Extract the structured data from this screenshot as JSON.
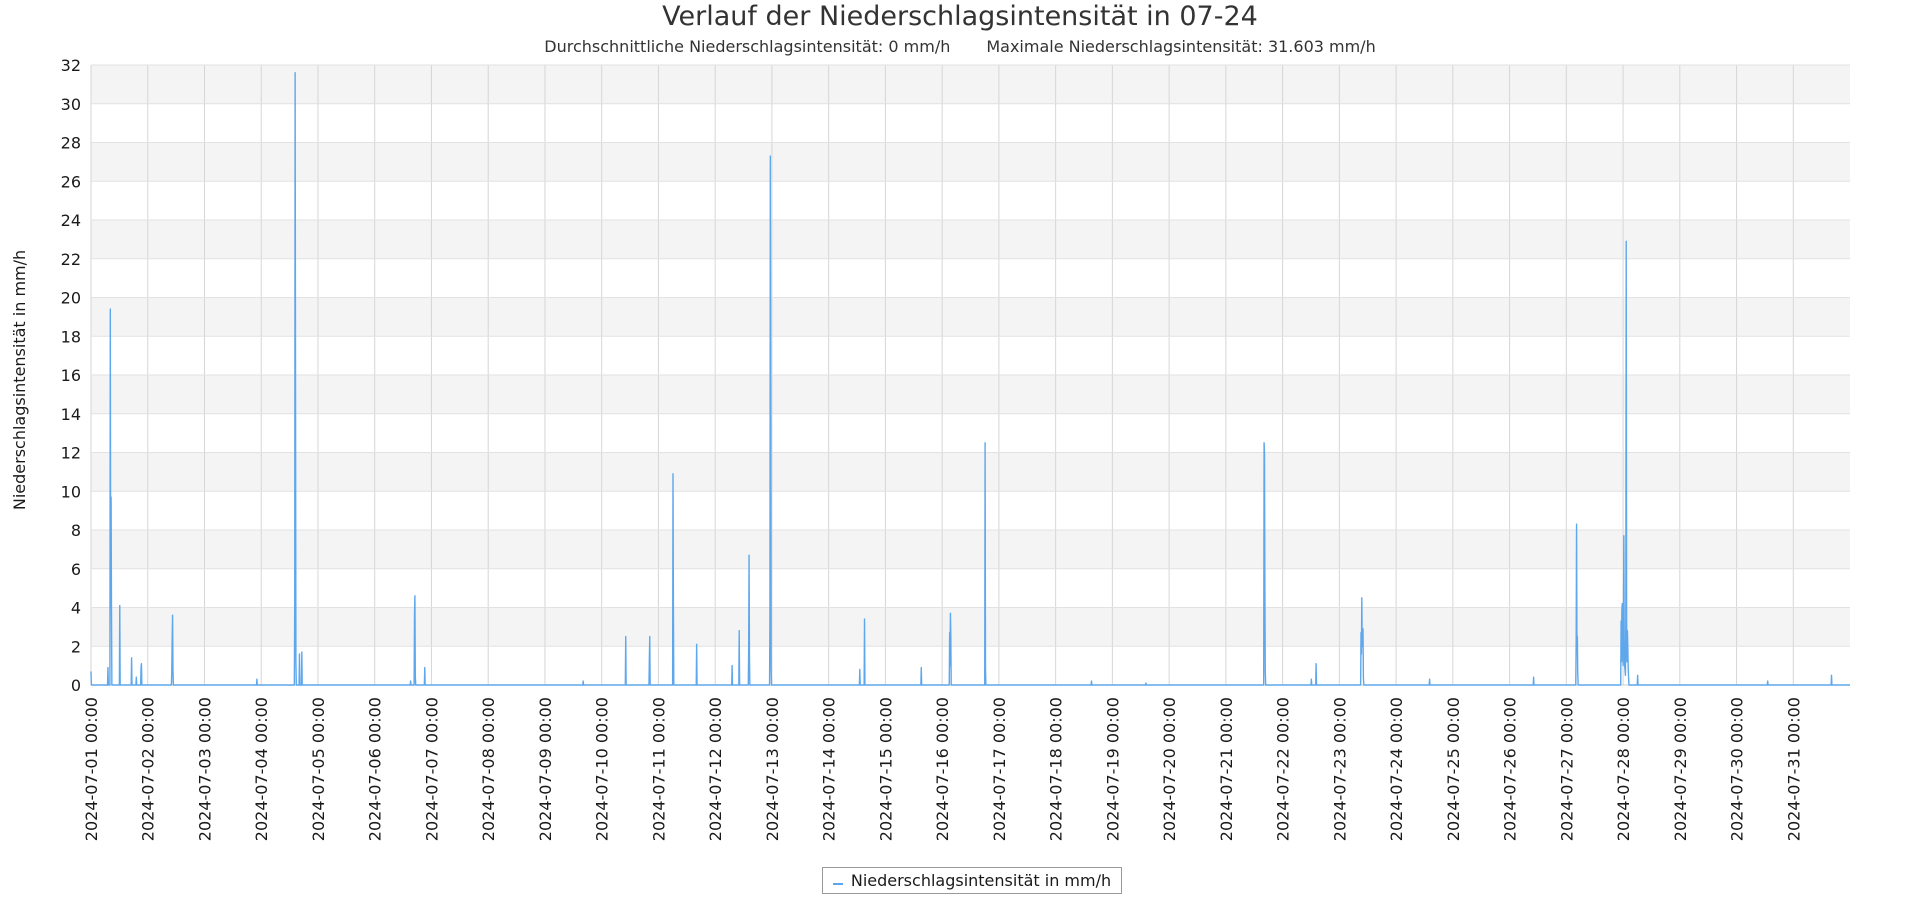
{
  "chart_data": {
    "type": "line",
    "title": "Verlauf der Niederschlagsintensität in 07-24",
    "subtitle": [
      "Durchschnittliche Niederschlagsintensität: 0 mm/h",
      "Maximale Niederschlagsintensität: 31.603 mm/h"
    ],
    "xlabel": "",
    "ylabel": "Niederschlagsintensität in mm/h",
    "xlim": [
      "2024-07-01 00:00",
      "2024-07-31 23:59"
    ],
    "ylim": [
      0,
      32
    ],
    "yticks": [
      0,
      2,
      4,
      6,
      8,
      10,
      12,
      14,
      16,
      18,
      20,
      22,
      24,
      26,
      28,
      30,
      32
    ],
    "xticks": [
      "2024-07-01 00:00",
      "2024-07-02 00:00",
      "2024-07-03 00:00",
      "2024-07-04 00:00",
      "2024-07-05 00:00",
      "2024-07-06 00:00",
      "2024-07-07 00:00",
      "2024-07-08 00:00",
      "2024-07-09 00:00",
      "2024-07-10 00:00",
      "2024-07-11 00:00",
      "2024-07-12 00:00",
      "2024-07-13 00:00",
      "2024-07-14 00:00",
      "2024-07-15 00:00",
      "2024-07-16 00:00",
      "2024-07-17 00:00",
      "2024-07-18 00:00",
      "2024-07-19 00:00",
      "2024-07-20 00:00",
      "2024-07-21 00:00",
      "2024-07-22 00:00",
      "2024-07-23 00:00",
      "2024-07-24 00:00",
      "2024-07-25 00:00",
      "2024-07-26 00:00",
      "2024-07-27 00:00",
      "2024-07-28 00:00",
      "2024-07-29 00:00",
      "2024-07-30 00:00",
      "2024-07-31 00:00"
    ],
    "grid": true,
    "legend_position": "bottom-center",
    "series": [
      {
        "name": "Niederschlagsintensität in mm/h",
        "color": "#5ea7ec",
        "points": [
          [
            "2024-07-01 00:00",
            0.7
          ],
          [
            "2024-07-01 00:10",
            0
          ],
          [
            "2024-07-01 07:00",
            0
          ],
          [
            "2024-07-01 07:10",
            0.9
          ],
          [
            "2024-07-01 07:20",
            0
          ],
          [
            "2024-07-01 08:00",
            0
          ],
          [
            "2024-07-01 08:10",
            19.4
          ],
          [
            "2024-07-01 08:20",
            4
          ],
          [
            "2024-07-01 08:30",
            9.7
          ],
          [
            "2024-07-01 08:40",
            3.9
          ],
          [
            "2024-07-01 08:50",
            0
          ],
          [
            "2024-07-01 12:00",
            0
          ],
          [
            "2024-07-01 12:10",
            4.1
          ],
          [
            "2024-07-01 12:20",
            0
          ],
          [
            "2024-07-01 17:00",
            0
          ],
          [
            "2024-07-01 17:10",
            1.4
          ],
          [
            "2024-07-01 17:20",
            0
          ],
          [
            "2024-07-01 19:00",
            0
          ],
          [
            "2024-07-01 19:10",
            0.4
          ],
          [
            "2024-07-01 19:20",
            0
          ],
          [
            "2024-07-01 21:00",
            0
          ],
          [
            "2024-07-01 21:10",
            0.9
          ],
          [
            "2024-07-01 21:20",
            1.1
          ],
          [
            "2024-07-01 21:30",
            0
          ],
          [
            "2024-07-02 10:00",
            0
          ],
          [
            "2024-07-02 10:10",
            0.7
          ],
          [
            "2024-07-02 10:20",
            2.4
          ],
          [
            "2024-07-02 10:30",
            3.6
          ],
          [
            "2024-07-02 10:40",
            0.8
          ],
          [
            "2024-07-02 10:50",
            0
          ],
          [
            "2024-07-03 22:00",
            0
          ],
          [
            "2024-07-03 22:10",
            0.3
          ],
          [
            "2024-07-03 22:20",
            0
          ],
          [
            "2024-07-04 14:00",
            0
          ],
          [
            "2024-07-04 14:10",
            4
          ],
          [
            "2024-07-04 14:20",
            31.603
          ],
          [
            "2024-07-04 14:30",
            16
          ],
          [
            "2024-07-04 14:40",
            1.2
          ],
          [
            "2024-07-04 14:50",
            0
          ],
          [
            "2024-07-04 16:00",
            0
          ],
          [
            "2024-07-04 16:10",
            1.6
          ],
          [
            "2024-07-04 16:20",
            0
          ],
          [
            "2024-07-04 17:00",
            0
          ],
          [
            "2024-07-04 17:10",
            1.7
          ],
          [
            "2024-07-04 17:20",
            0
          ],
          [
            "2024-07-06 15:00",
            0
          ],
          [
            "2024-07-06 15:10",
            0.2
          ],
          [
            "2024-07-06 15:20",
            0
          ],
          [
            "2024-07-06 16:40",
            0
          ],
          [
            "2024-07-06 16:50",
            3.7
          ],
          [
            "2024-07-06 17:00",
            4.6
          ],
          [
            "2024-07-06 17:10",
            0.5
          ],
          [
            "2024-07-06 17:20",
            0
          ],
          [
            "2024-07-06 21:00",
            0
          ],
          [
            "2024-07-06 21:10",
            0.9
          ],
          [
            "2024-07-06 21:20",
            0
          ],
          [
            "2024-07-09 16:00",
            0
          ],
          [
            "2024-07-09 16:10",
            0.2
          ],
          [
            "2024-07-09 16:20",
            0
          ],
          [
            "2024-07-10 10:00",
            0
          ],
          [
            "2024-07-10 10:10",
            2.5
          ],
          [
            "2024-07-10 10:20",
            0
          ],
          [
            "2024-07-10 20:00",
            0
          ],
          [
            "2024-07-10 20:10",
            1.4
          ],
          [
            "2024-07-10 20:20",
            2.5
          ],
          [
            "2024-07-10 20:30",
            0
          ],
          [
            "2024-07-11 06:00",
            0
          ],
          [
            "2024-07-11 06:10",
            10.9
          ],
          [
            "2024-07-11 06:20",
            4
          ],
          [
            "2024-07-11 06:30",
            0
          ],
          [
            "2024-07-11 16:00",
            0
          ],
          [
            "2024-07-11 16:10",
            2.1
          ],
          [
            "2024-07-11 16:20",
            0
          ],
          [
            "2024-07-12 07:00",
            0
          ],
          [
            "2024-07-12 07:10",
            1
          ],
          [
            "2024-07-12 07:20",
            0
          ],
          [
            "2024-07-12 10:00",
            0
          ],
          [
            "2024-07-12 10:10",
            2.8
          ],
          [
            "2024-07-12 10:20",
            0
          ],
          [
            "2024-07-12 14:00",
            0
          ],
          [
            "2024-07-12 14:10",
            1.8
          ],
          [
            "2024-07-12 14:20",
            6.7
          ],
          [
            "2024-07-12 14:30",
            1.4
          ],
          [
            "2024-07-12 14:40",
            0
          ],
          [
            "2024-07-12 23:00",
            0
          ],
          [
            "2024-07-12 23:10",
            3.5
          ],
          [
            "2024-07-12 23:20",
            27.3
          ],
          [
            "2024-07-12 23:30",
            15
          ],
          [
            "2024-07-12 23:40",
            0.8
          ],
          [
            "2024-07-12 23:50",
            0
          ],
          [
            "2024-07-14 13:00",
            0
          ],
          [
            "2024-07-14 13:10",
            0.8
          ],
          [
            "2024-07-14 13:20",
            0
          ],
          [
            "2024-07-14 15:00",
            0
          ],
          [
            "2024-07-14 15:10",
            3.4
          ],
          [
            "2024-07-14 15:20",
            0
          ],
          [
            "2024-07-15 15:00",
            0
          ],
          [
            "2024-07-15 15:10",
            0.9
          ],
          [
            "2024-07-15 15:20",
            0
          ],
          [
            "2024-07-16 03:00",
            0
          ],
          [
            "2024-07-16 03:10",
            2.7
          ],
          [
            "2024-07-16 03:20",
            1
          ],
          [
            "2024-07-16 03:30",
            3.7
          ],
          [
            "2024-07-16 03:40",
            2.5
          ],
          [
            "2024-07-16 03:50",
            0
          ],
          [
            "2024-07-16 18:00",
            0
          ],
          [
            "2024-07-16 18:10",
            12.5
          ],
          [
            "2024-07-16 18:20",
            0.8
          ],
          [
            "2024-07-16 18:30",
            0
          ],
          [
            "2024-07-18 15:00",
            0
          ],
          [
            "2024-07-18 15:10",
            0.2
          ],
          [
            "2024-07-18 15:20",
            0
          ],
          [
            "2024-07-19 14:00",
            0
          ],
          [
            "2024-07-19 14:10",
            0.1
          ],
          [
            "2024-07-19 14:20",
            0
          ],
          [
            "2024-07-21 16:00",
            0
          ],
          [
            "2024-07-21 16:10",
            12.5
          ],
          [
            "2024-07-21 16:20",
            12
          ],
          [
            "2024-07-21 16:30",
            5.1
          ],
          [
            "2024-07-21 16:40",
            0.7
          ],
          [
            "2024-07-21 16:50",
            0
          ],
          [
            "2024-07-22 12:00",
            0
          ],
          [
            "2024-07-22 12:10",
            0.3
          ],
          [
            "2024-07-22 12:20",
            0
          ],
          [
            "2024-07-22 14:00",
            0
          ],
          [
            "2024-07-22 14:10",
            1.1
          ],
          [
            "2024-07-22 14:20",
            0
          ],
          [
            "2024-07-23 09:00",
            0
          ],
          [
            "2024-07-23 09:10",
            2.7
          ],
          [
            "2024-07-23 09:20",
            1.6
          ],
          [
            "2024-07-23 09:30",
            4.5
          ],
          [
            "2024-07-23 09:40",
            2
          ],
          [
            "2024-07-23 09:50",
            2.9
          ],
          [
            "2024-07-23 10:00",
            2.9
          ],
          [
            "2024-07-23 10:10",
            0.4
          ],
          [
            "2024-07-23 10:20",
            0
          ],
          [
            "2024-07-24 14:00",
            0
          ],
          [
            "2024-07-24 14:10",
            0.3
          ],
          [
            "2024-07-24 14:20",
            0
          ],
          [
            "2024-07-26 10:00",
            0
          ],
          [
            "2024-07-26 10:10",
            0.4
          ],
          [
            "2024-07-26 10:20",
            0
          ],
          [
            "2024-07-27 04:00",
            0
          ],
          [
            "2024-07-27 04:10",
            2.2
          ],
          [
            "2024-07-27 04:20",
            8.3
          ],
          [
            "2024-07-27 04:30",
            1.9
          ],
          [
            "2024-07-27 04:40",
            2.5
          ],
          [
            "2024-07-27 04:50",
            0.6
          ],
          [
            "2024-07-27 05:00",
            0
          ],
          [
            "2024-07-27 23:00",
            0
          ],
          [
            "2024-07-27 23:10",
            3.3
          ],
          [
            "2024-07-27 23:20",
            1.2
          ],
          [
            "2024-07-27 23:30",
            3.9
          ],
          [
            "2024-07-27 23:40",
            4.2
          ],
          [
            "2024-07-27 23:50",
            2
          ],
          [
            "2024-07-28 00:00",
            1
          ],
          [
            "2024-07-28 00:10",
            3.4
          ],
          [
            "2024-07-28 00:20",
            7.7
          ],
          [
            "2024-07-28 00:30",
            2
          ],
          [
            "2024-07-28 00:40",
            1
          ],
          [
            "2024-07-28 01:00",
            0.5
          ],
          [
            "2024-07-28 01:10",
            3.4
          ],
          [
            "2024-07-28 01:20",
            22.9
          ],
          [
            "2024-07-28 01:30",
            3.3
          ],
          [
            "2024-07-28 01:40",
            1.2
          ],
          [
            "2024-07-28 01:50",
            2.8
          ],
          [
            "2024-07-28 02:00",
            2
          ],
          [
            "2024-07-28 02:10",
            0.9
          ],
          [
            "2024-07-28 02:20",
            0.4
          ],
          [
            "2024-07-28 02:30",
            0
          ],
          [
            "2024-07-28 06:00",
            0
          ],
          [
            "2024-07-28 06:10",
            0.5
          ],
          [
            "2024-07-28 06:20",
            0
          ],
          [
            "2024-07-30 13:00",
            0
          ],
          [
            "2024-07-30 13:10",
            0.2
          ],
          [
            "2024-07-30 13:20",
            0
          ],
          [
            "2024-07-31 16:00",
            0
          ],
          [
            "2024-07-31 16:10",
            0.5
          ],
          [
            "2024-07-31 16:20",
            0
          ],
          [
            "2024-07-31 23:59",
            0
          ]
        ]
      }
    ]
  }
}
